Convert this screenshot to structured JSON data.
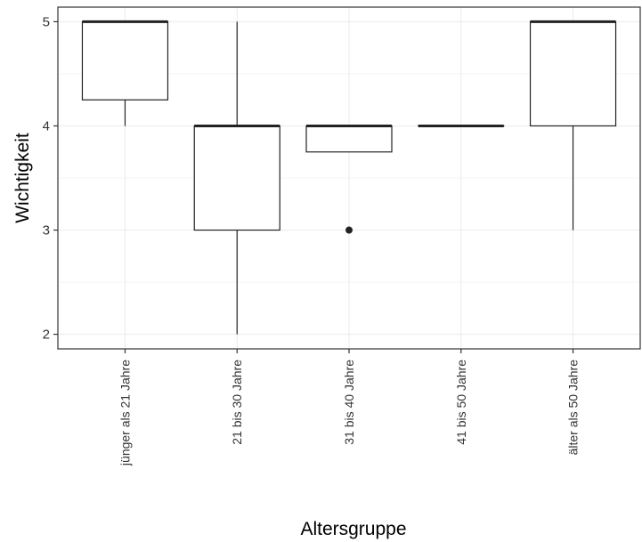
{
  "chart_data": {
    "type": "boxplot",
    "title": "",
    "xlabel": "Altersgruppe",
    "ylabel": "Wichtigkeit",
    "ylim": [
      1.86,
      5.14
    ],
    "y_ticks": [
      2,
      3,
      4,
      5
    ],
    "grid": true,
    "categories": [
      "jünger als 21 Jahre",
      "21 bis 30 Jahre",
      "31 bis 40 Jahre",
      "41 bis 50 Jahre",
      "älter als 50 Jahre"
    ],
    "boxes": [
      {
        "category": "jünger als 21 Jahre",
        "whisker_low": 4,
        "q1": 4.25,
        "median": 5,
        "q3": 5,
        "whisker_high": 5,
        "outliers": []
      },
      {
        "category": "21 bis 30 Jahre",
        "whisker_low": 2,
        "q1": 3,
        "median": 4,
        "q3": 4,
        "whisker_high": 5,
        "outliers": []
      },
      {
        "category": "31 bis 40 Jahre",
        "whisker_low": 3.75,
        "q1": 3.75,
        "median": 4,
        "q3": 4,
        "whisker_high": 4,
        "outliers": [
          3
        ]
      },
      {
        "category": "41 bis 50 Jahre",
        "whisker_low": 4,
        "q1": 4,
        "median": 4,
        "q3": 4,
        "whisker_high": 4,
        "outliers": []
      },
      {
        "category": "älter als 50 Jahre",
        "whisker_low": 3,
        "q1": 4,
        "median": 5,
        "q3": 5,
        "whisker_high": 5,
        "outliers": []
      }
    ]
  }
}
